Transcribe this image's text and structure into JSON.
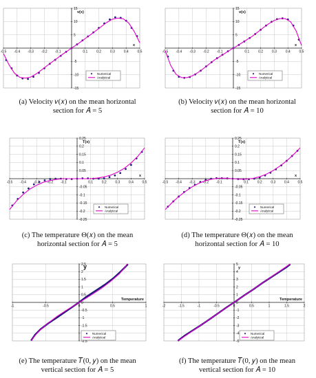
{
  "colors": {
    "numerical": "#1c1c78",
    "analytical": "#e000c8",
    "grid": "#c8c8c8",
    "axis": "#222222"
  },
  "chart_data": [
    {
      "type": "line",
      "ylabel": "v(x)",
      "xlabel": "x",
      "xlim": [
        -0.5,
        0.5
      ],
      "ylim": [
        -15,
        15
      ],
      "xticks": [
        -0.5,
        -0.4,
        -0.3,
        -0.2,
        -0.1,
        0,
        0.1,
        0.2,
        0.3,
        0.4,
        0.5
      ],
      "yticks": [
        -15,
        -10,
        -5,
        0,
        5,
        10,
        15
      ],
      "xtick_labels": [
        "-0.5",
        "-0.4",
        "-0.3",
        "-0.2",
        "-0.1",
        "0",
        "0.1",
        "0.2",
        "0.3",
        "0.4",
        "0.5"
      ],
      "ytick_labels": [
        "-15",
        "-10",
        "-5",
        "0",
        "5",
        "10",
        "15"
      ],
      "legend": [
        "Numerical",
        "Analytical"
      ],
      "series": [
        {
          "name": "Numerical",
          "style": "points",
          "x": [
            -0.48,
            -0.44,
            -0.4,
            -0.36,
            -0.32,
            -0.28,
            -0.24,
            -0.2,
            -0.16,
            -0.12,
            -0.08,
            -0.04,
            0,
            0.04,
            0.08,
            0.12,
            0.16,
            0.2,
            0.24,
            0.28,
            0.32,
            0.36,
            0.4,
            0.44,
            0.48
          ],
          "y": [
            -4.5,
            -7.6,
            -10.3,
            -11.4,
            -11.6,
            -10.8,
            -9.3,
            -7.6,
            -5.9,
            -4.4,
            -2.9,
            -1.4,
            0,
            1.4,
            2.9,
            4.4,
            5.9,
            7.6,
            9.3,
            10.8,
            11.6,
            11.4,
            10.3,
            7.6,
            4.5
          ]
        },
        {
          "name": "Analytical",
          "style": "line",
          "x": [
            -0.5,
            -0.46,
            -0.42,
            -0.38,
            -0.34,
            -0.3,
            -0.26,
            -0.22,
            -0.18,
            -0.14,
            -0.1,
            -0.06,
            -0.02,
            0.02,
            0.06,
            0.1,
            0.14,
            0.18,
            0.22,
            0.26,
            0.3,
            0.34,
            0.38,
            0.42,
            0.46,
            0.5
          ],
          "y": [
            -2.0,
            -6.2,
            -9.4,
            -11.0,
            -11.3,
            -10.9,
            -9.7,
            -8.2,
            -6.6,
            -5.1,
            -3.6,
            -2.1,
            -0.7,
            0.7,
            2.1,
            3.6,
            5.1,
            6.6,
            8.2,
            9.7,
            10.9,
            11.3,
            11.0,
            9.4,
            6.2,
            2.0
          ]
        }
      ]
    },
    {
      "type": "line",
      "ylabel": "v(x)",
      "xlabel": "x",
      "xlim": [
        -0.5,
        0.5
      ],
      "ylim": [
        -15,
        15
      ],
      "xticks": [
        -0.5,
        -0.4,
        -0.3,
        -0.2,
        -0.1,
        0,
        0.1,
        0.2,
        0.3,
        0.4,
        0.5
      ],
      "yticks": [
        -15,
        -10,
        -5,
        0,
        5,
        10,
        15
      ],
      "xtick_labels": [
        "-0.5",
        "-0.4",
        "-0.3",
        "-0.2",
        "-0.1",
        "0",
        "0.1",
        "0.2",
        "0.3",
        "0.4",
        "0.5"
      ],
      "ytick_labels": [
        "-15",
        "-10",
        "-5",
        "0",
        "5",
        "10",
        "15"
      ],
      "legend": [
        "Numerical",
        "Analytical"
      ],
      "series": [
        {
          "name": "Numerical",
          "style": "points",
          "x": [
            -0.48,
            -0.44,
            -0.4,
            -0.36,
            -0.32,
            -0.28,
            -0.24,
            -0.2,
            -0.16,
            -0.12,
            -0.08,
            -0.04,
            0,
            0.04,
            0.08,
            0.12,
            0.16,
            0.2,
            0.24,
            0.28,
            0.32,
            0.36,
            0.4,
            0.44,
            0.48
          ],
          "y": [
            -3.2,
            -8.5,
            -10.8,
            -11.2,
            -10.9,
            -9.9,
            -8.5,
            -6.9,
            -5.3,
            -3.8,
            -2.5,
            -1.2,
            0,
            1.2,
            2.5,
            3.8,
            5.3,
            6.9,
            8.5,
            9.9,
            10.9,
            11.2,
            10.8,
            8.5,
            3.2
          ]
        },
        {
          "name": "Analytical",
          "style": "line",
          "x": [
            -0.5,
            -0.46,
            -0.42,
            -0.38,
            -0.34,
            -0.3,
            -0.26,
            -0.22,
            -0.18,
            -0.14,
            -0.1,
            -0.06,
            -0.02,
            0.02,
            0.06,
            0.1,
            0.14,
            0.18,
            0.22,
            0.26,
            0.3,
            0.34,
            0.38,
            0.42,
            0.46,
            0.5
          ],
          "y": [
            -1.0,
            -6.5,
            -9.9,
            -11.1,
            -11.1,
            -10.4,
            -9.2,
            -7.7,
            -6.1,
            -4.5,
            -3.2,
            -1.9,
            -0.6,
            0.6,
            1.9,
            3.2,
            4.5,
            6.1,
            7.7,
            9.2,
            10.4,
            11.1,
            11.1,
            9.9,
            6.5,
            1.0
          ]
        }
      ]
    },
    {
      "type": "line",
      "ylabel": "T(x)",
      "xlabel": "x",
      "xlim": [
        -0.5,
        0.5
      ],
      "ylim": [
        -0.25,
        0.25
      ],
      "xticks": [
        -0.5,
        -0.4,
        -0.3,
        -0.2,
        -0.1,
        0,
        0.1,
        0.2,
        0.3,
        0.4,
        0.5
      ],
      "yticks": [
        -0.25,
        -0.2,
        -0.15,
        -0.1,
        -0.05,
        0,
        0.05,
        0.1,
        0.15,
        0.2,
        0.25
      ],
      "xtick_labels": [
        "-0.5",
        "-0.4",
        "-0.3",
        "-0.2",
        "-0.1",
        "0",
        "0.1",
        "0.2",
        "0.3",
        "0.4",
        "0.5"
      ],
      "ytick_labels": [
        "-0.25",
        "-0.2",
        "-0.15",
        "-0.1",
        "-0.05",
        "0",
        "0.05",
        "0.1",
        "0.15",
        "0.2",
        "0.25"
      ],
      "legend": [
        "Numerical",
        "Analytical"
      ],
      "series": [
        {
          "name": "Numerical",
          "style": "points",
          "x": [
            -0.48,
            -0.44,
            -0.4,
            -0.36,
            -0.32,
            -0.28,
            -0.24,
            -0.2,
            -0.16,
            -0.12,
            -0.08,
            -0.04,
            0,
            0.04,
            0.08,
            0.12,
            0.16,
            0.2,
            0.24,
            0.28,
            0.32,
            0.36,
            0.4,
            0.44,
            0.48
          ],
          "y": [
            -0.165,
            -0.125,
            -0.085,
            -0.06,
            -0.035,
            -0.02,
            -0.01,
            -0.002,
            0.0,
            0.0,
            -0.002,
            -0.002,
            0.0,
            0.002,
            0.002,
            0.0,
            0.0,
            0.002,
            0.01,
            0.02,
            0.035,
            0.06,
            0.085,
            0.125,
            0.165
          ]
        },
        {
          "name": "Analytical",
          "style": "line",
          "x": [
            -0.5,
            -0.45,
            -0.4,
            -0.35,
            -0.3,
            -0.25,
            -0.2,
            -0.15,
            -0.1,
            -0.05,
            0,
            0.05,
            0.1,
            0.15,
            0.2,
            0.25,
            0.3,
            0.35,
            0.4,
            0.45,
            0.5
          ],
          "y": [
            -0.19,
            -0.138,
            -0.097,
            -0.064,
            -0.04,
            -0.022,
            -0.011,
            -0.004,
            0.0,
            0.0,
            0.0,
            0.0,
            0.0,
            0.004,
            0.011,
            0.022,
            0.04,
            0.064,
            0.097,
            0.138,
            0.19
          ]
        }
      ]
    },
    {
      "type": "line",
      "ylabel": "T(x)",
      "xlabel": "x",
      "xlim": [
        -0.5,
        0.5
      ],
      "ylim": [
        -0.25,
        0.25
      ],
      "xticks": [
        -0.5,
        -0.4,
        -0.3,
        -0.2,
        -0.1,
        0,
        0.1,
        0.2,
        0.3,
        0.4,
        0.5
      ],
      "yticks": [
        -0.25,
        -0.2,
        -0.15,
        -0.1,
        -0.05,
        0,
        0.05,
        0.1,
        0.15,
        0.2,
        0.25
      ],
      "xtick_labels": [
        "-0.5",
        "-0.4",
        "-0.3",
        "-0.2",
        "-0.1",
        "0",
        "0.1",
        "0.2",
        "0.3",
        "0.4",
        "0.5"
      ],
      "ytick_labels": [
        "-0.25",
        "-0.2",
        "-0.15",
        "-0.1",
        "-0.05",
        "0",
        "0.05",
        "0.1",
        "0.15",
        "0.2",
        "0.25"
      ],
      "legend": [
        "Numerical",
        "Analytical"
      ],
      "series": [
        {
          "name": "Numerical",
          "style": "points",
          "x": [
            -0.48,
            -0.44,
            -0.4,
            -0.36,
            -0.32,
            -0.28,
            -0.24,
            -0.2,
            -0.16,
            -0.12,
            -0.08,
            -0.04,
            0,
            0.04,
            0.08,
            0.12,
            0.16,
            0.2,
            0.24,
            0.28,
            0.32,
            0.36,
            0.4,
            0.44,
            0.48
          ],
          "y": [
            -0.172,
            -0.14,
            -0.11,
            -0.082,
            -0.058,
            -0.037,
            -0.02,
            -0.008,
            0.0,
            0.003,
            0.003,
            0.002,
            0.0,
            -0.002,
            -0.003,
            -0.003,
            0.0,
            0.008,
            0.02,
            0.037,
            0.058,
            0.082,
            0.11,
            0.14,
            0.172
          ]
        },
        {
          "name": "Analytical",
          "style": "line",
          "x": [
            -0.5,
            -0.45,
            -0.4,
            -0.35,
            -0.3,
            -0.25,
            -0.2,
            -0.15,
            -0.1,
            -0.05,
            0,
            0.05,
            0.1,
            0.15,
            0.2,
            0.25,
            0.3,
            0.35,
            0.4,
            0.45,
            0.5
          ],
          "y": [
            -0.19,
            -0.148,
            -0.11,
            -0.078,
            -0.05,
            -0.028,
            -0.012,
            -0.002,
            0.003,
            0.003,
            0.0,
            -0.003,
            -0.003,
            0.002,
            0.012,
            0.028,
            0.05,
            0.078,
            0.11,
            0.148,
            0.19
          ]
        }
      ]
    },
    {
      "type": "line",
      "ylabel": "y",
      "xlabel": "Temperature",
      "xlim": [
        -1,
        1
      ],
      "ylim": [
        -2.5,
        2.5
      ],
      "xticks": [
        -1,
        -0.5,
        0,
        0.5,
        1
      ],
      "yticks": [
        -2.5,
        -2,
        -1.5,
        -1,
        -0.5,
        0,
        0.5,
        1,
        1.5,
        2,
        2.5
      ],
      "xtick_labels": [
        "-1",
        "-0.5",
        "0",
        "0.5",
        "1"
      ],
      "ytick_labels": [
        "-2.5",
        "-2",
        "-1.5",
        "-1",
        "-0.5",
        "0",
        "0.5",
        "1",
        "1.5",
        "2",
        "2.5"
      ],
      "legend": [
        "Numerical",
        "Analytical"
      ],
      "series": [
        {
          "name": "Numerical",
          "style": "dense",
          "x": [
            -0.72,
            -0.7,
            -0.66,
            -0.58,
            -0.46,
            -0.32,
            -0.17,
            -0.02,
            0.12,
            0.26,
            0.4,
            0.52,
            0.62,
            0.69,
            0.73
          ],
          "y": [
            -2.48,
            -2.35,
            -2.1,
            -1.75,
            -1.35,
            -0.95,
            -0.5,
            -0.05,
            0.4,
            0.8,
            1.2,
            1.6,
            2.0,
            2.3,
            2.48
          ]
        },
        {
          "name": "Analytical",
          "style": "line",
          "x": [
            -0.72,
            -0.68,
            -0.6,
            -0.48,
            -0.33,
            -0.17,
            0,
            0.17,
            0.33,
            0.48,
            0.6,
            0.68,
            0.72
          ],
          "y": [
            -2.5,
            -2.25,
            -1.85,
            -1.4,
            -0.9,
            -0.45,
            0,
            0.45,
            0.9,
            1.4,
            1.85,
            2.25,
            2.5
          ]
        }
      ]
    },
    {
      "type": "line",
      "ylabel": "y",
      "xlabel": "Temperature",
      "xlim": [
        -2,
        2
      ],
      "ylim": [
        -5,
        5
      ],
      "xticks": [
        -2,
        -1.5,
        -1,
        -0.5,
        0,
        0.5,
        1,
        1.5,
        2
      ],
      "yticks": [
        -5,
        -4,
        -3,
        -2,
        -1,
        0,
        1,
        2,
        3,
        4,
        5
      ],
      "xtick_labels": [
        "-2",
        "-1.5",
        "-1",
        "-0.5",
        "0",
        "0.5",
        "1",
        "1.5",
        "2"
      ],
      "ytick_labels": [
        "-5",
        "-4",
        "-3",
        "-2",
        "-1",
        "0",
        "1",
        "2",
        "3",
        "4",
        "5"
      ],
      "legend": [
        "Numerical",
        "Analytical"
      ],
      "series": [
        {
          "name": "Numerical",
          "style": "dense",
          "x": [
            -1.6,
            -1.55,
            -1.4,
            -1.2,
            -0.96,
            -0.7,
            -0.45,
            -0.2,
            0.05,
            0.3,
            0.55,
            0.8,
            1.05,
            1.3,
            1.5,
            1.6
          ],
          "y": [
            -5.0,
            -4.8,
            -4.3,
            -3.7,
            -3.0,
            -2.2,
            -1.4,
            -0.6,
            0.15,
            0.95,
            1.7,
            2.5,
            3.25,
            4.0,
            4.6,
            4.95
          ]
        },
        {
          "name": "Analytical",
          "style": "line",
          "x": [
            -1.6,
            -1.2,
            -0.8,
            -0.4,
            0,
            0.4,
            0.8,
            1.2,
            1.6
          ],
          "y": [
            -5.0,
            -3.75,
            -2.5,
            -1.25,
            0,
            1.25,
            2.5,
            3.75,
            5.0
          ]
        }
      ]
    }
  ],
  "captions": [
    {
      "l1": "(a) Velocity  𝑣(𝑥)  on the mean horizontal",
      "l2": "section for  𝐴 = 5"
    },
    {
      "l1": "(b) Velocity  𝑣(𝑥)  on the mean horizontal",
      "l2": "section for  𝐴 = 10"
    },
    {
      "l1": "(c) The temperature  Θ(𝑥)  on the mean",
      "l2": "horizontal section for  𝐴 = 5"
    },
    {
      "l1": "(d) The temperature  Θ(𝑥)  on the mean",
      "l2": "horizontal section for  𝐴 = 10"
    },
    {
      "l1": "(e) The temperature  𝑇(0, 𝑦)  on the mean",
      "l2": "vertical section for  𝐴 = 5"
    },
    {
      "l1": "(f) The temperature  𝑇(0, 𝑦)  on the mean",
      "l2": "vertical section for  𝐴 = 10"
    }
  ]
}
